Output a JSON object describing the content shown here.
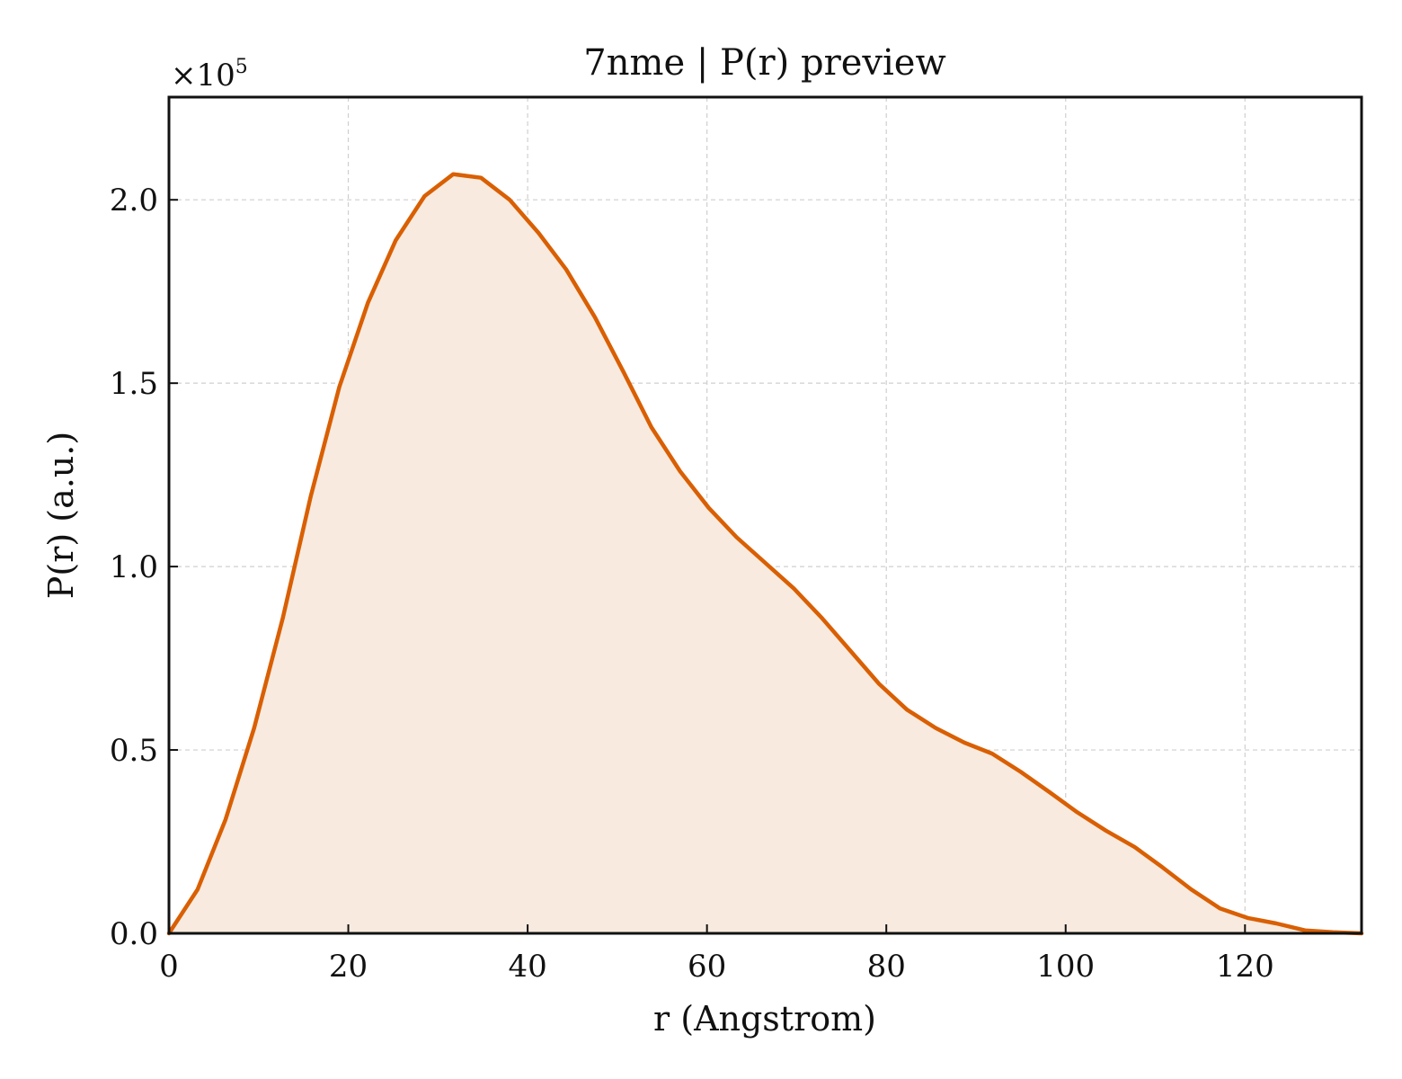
{
  "chart_data": {
    "type": "area",
    "title": "7nme | P(r) preview",
    "xlabel": "r (Angstrom)",
    "ylabel": "P(r) (a.u.)",
    "y_multiplier_label": "×10",
    "y_multiplier_exponent": "5",
    "xlim": [
      0,
      133
    ],
    "ylim": [
      0,
      2.28
    ],
    "x_ticks": [
      0,
      20,
      40,
      60,
      80,
      100,
      120
    ],
    "x_tick_labels": [
      "0",
      "20",
      "40",
      "60",
      "80",
      "100",
      "120"
    ],
    "y_ticks": [
      0.0,
      0.5,
      1.0,
      1.5,
      2.0
    ],
    "y_tick_labels": [
      "0.0",
      "0.5",
      "1.0",
      "1.5",
      "2.0"
    ],
    "grid": true,
    "colors": {
      "line": "#d95f02",
      "fill": "#f8eadf"
    },
    "series": [
      {
        "x": [
          0,
          3.2,
          6.3,
          9.5,
          12.7,
          15.8,
          19.0,
          22.2,
          25.3,
          28.5,
          31.7,
          34.8,
          38.0,
          41.2,
          44.3,
          47.5,
          50.7,
          53.8,
          57.0,
          60.2,
          63.3,
          66.5,
          69.7,
          72.8,
          76.0,
          79.2,
          82.3,
          85.5,
          88.7,
          91.8,
          95.0,
          98.2,
          101.3,
          104.5,
          107.7,
          110.8,
          114.0,
          117.2,
          120.3,
          123.5,
          126.7,
          129.8,
          133.0
        ],
        "values": [
          0.0,
          0.12,
          0.31,
          0.56,
          0.86,
          1.19,
          1.49,
          1.72,
          1.89,
          2.01,
          2.07,
          2.06,
          2.0,
          1.91,
          1.81,
          1.68,
          1.53,
          1.38,
          1.26,
          1.16,
          1.08,
          1.01,
          0.94,
          0.86,
          0.77,
          0.68,
          0.61,
          0.56,
          0.52,
          0.49,
          0.44,
          0.385,
          0.33,
          0.28,
          0.235,
          0.18,
          0.12,
          0.068,
          0.042,
          0.027,
          0.008,
          0.003,
          0.0
        ]
      }
    ]
  }
}
